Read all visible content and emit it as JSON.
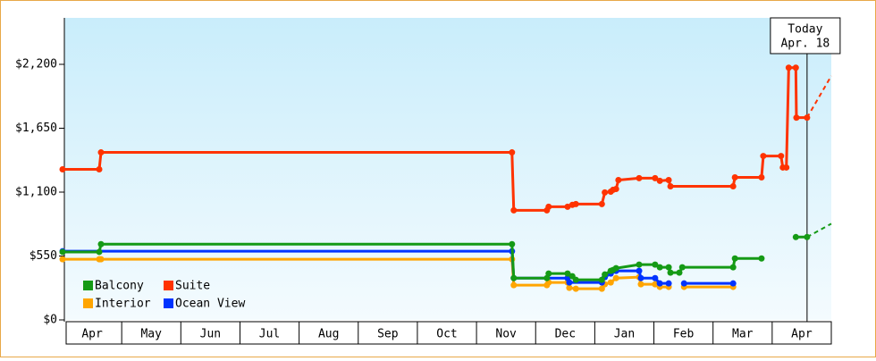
{
  "chart_data": {
    "type": "line",
    "xlim": [
      0,
      13
    ],
    "ylim": [
      0,
      2600
    ],
    "yticks": [
      {
        "value": 0,
        "label": "$0"
      },
      {
        "value": 550,
        "label": "$550"
      },
      {
        "value": 1100,
        "label": "$1,100"
      },
      {
        "value": 1650,
        "label": "$1,650"
      },
      {
        "value": 2200,
        "label": "$2,200"
      }
    ],
    "xticks": [
      {
        "value": 0.5,
        "label": "Apr"
      },
      {
        "value": 1.5,
        "label": "May"
      },
      {
        "value": 2.5,
        "label": "Jun"
      },
      {
        "value": 3.5,
        "label": "Jul"
      },
      {
        "value": 4.5,
        "label": "Aug"
      },
      {
        "value": 5.5,
        "label": "Sep"
      },
      {
        "value": 6.5,
        "label": "Oct"
      },
      {
        "value": 7.5,
        "label": "Nov"
      },
      {
        "value": 8.5,
        "label": "Dec"
      },
      {
        "value": 9.5,
        "label": "Jan"
      },
      {
        "value": 10.5,
        "label": "Feb"
      },
      {
        "value": 11.5,
        "label": "Mar"
      },
      {
        "value": 12.5,
        "label": "Apr"
      }
    ],
    "annotation": {
      "x": 12.59,
      "lines": [
        "Today",
        "Apr. 18"
      ]
    },
    "series": [
      {
        "name": "Balcony",
        "color": "#159a15",
        "x": [
          0,
          0.62,
          0.65,
          7.6,
          7.63,
          8.19,
          8.22,
          8.54,
          8.62,
          8.68,
          9.12,
          9.17,
          9.27,
          9.31,
          9.36,
          9.75,
          10.02,
          10.1,
          10.25,
          10.28,
          10.43,
          10.48,
          11.34,
          11.37,
          11.82,
          12.1,
          12.4,
          12.59
        ],
        "values": [
          585,
          585,
          652,
          652,
          360,
          360,
          399,
          399,
          376,
          345,
          345,
          391,
          422,
          430,
          445,
          476,
          476,
          453,
          453,
          407,
          407,
          453,
          453,
          529,
          529,
          null,
          713,
          713
        ],
        "forecast": {
          "x": 13,
          "value": 828
        }
      },
      {
        "name": "Suite",
        "color": "#ff3300",
        "x": [
          0,
          0.62,
          0.65,
          7.6,
          7.63,
          8.19,
          8.22,
          8.54,
          8.62,
          8.68,
          9.12,
          9.17,
          9.27,
          9.31,
          9.36,
          9.4,
          9.75,
          10.02,
          10.1,
          10.25,
          10.28,
          11.34,
          11.37,
          11.82,
          11.85,
          12.15,
          12.18,
          12.24,
          12.28,
          12.4,
          12.41,
          12.59
        ],
        "values": [
          1296,
          1296,
          1442,
          1442,
          943,
          943,
          974,
          974,
          990,
          997,
          997,
          1097,
          1104,
          1120,
          1127,
          1204,
          1220,
          1220,
          1197,
          1204,
          1150,
          1150,
          1227,
          1227,
          1411,
          1411,
          1312,
          1312,
          2171,
          2171,
          1741,
          1741
        ],
        "forecast": {
          "x": 13,
          "value": 2101
        }
      },
      {
        "name": "Interior",
        "color": "#ffa500",
        "x": [
          0,
          0.62,
          0.65,
          7.6,
          7.63,
          8.19,
          8.22,
          8.54,
          8.57,
          8.68,
          9.12,
          9.17,
          9.27,
          9.36,
          9.75,
          9.78,
          10.02,
          10.1,
          10.25,
          10.38,
          10.51,
          11.34
        ],
        "values": [
          522,
          522,
          522,
          522,
          299,
          299,
          322,
          322,
          276,
          268,
          268,
          307,
          322,
          360,
          368,
          307,
          307,
          284,
          284,
          null,
          284,
          284
        ]
      },
      {
        "name": "Ocean View",
        "color": "#0033ff",
        "x": [
          0,
          7.6,
          7.63,
          8.54,
          8.57,
          9.12,
          9.17,
          9.27,
          9.36,
          9.75,
          9.78,
          10.02,
          10.1,
          10.25,
          10.38,
          10.51,
          11.34
        ],
        "values": [
          591,
          591,
          360,
          360,
          322,
          322,
          368,
          399,
          422,
          422,
          360,
          360,
          314,
          314,
          null,
          314,
          314
        ]
      }
    ]
  }
}
